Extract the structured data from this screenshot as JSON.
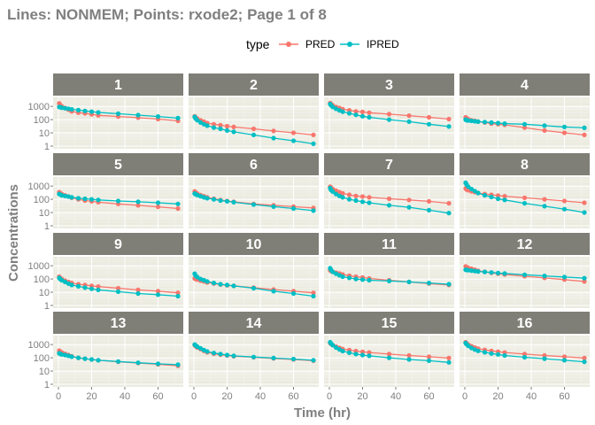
{
  "chart_data": {
    "type": "line",
    "title": "Lines: NONMEM; Points: rxode2; Page 1 of 8",
    "xlabel": "Time (hr)",
    "ylabel": "Concentrations",
    "y_scale": "log10",
    "xlim": [
      0,
      72
    ],
    "ylim": [
      1,
      3000
    ],
    "x_ticks": [
      0,
      20,
      40,
      60
    ],
    "y_ticks": [
      1,
      10,
      100,
      1000
    ],
    "y_tick_labels": [
      "1",
      "10",
      "100",
      "1000"
    ],
    "grid": true,
    "legend": {
      "title": "type",
      "position": "top",
      "entries": [
        {
          "name": "PRED",
          "color": "#F8766D"
        },
        {
          "name": "IPRED",
          "color": "#00BFC4"
        }
      ]
    },
    "colors": {
      "panel_bg": "#ebebe0",
      "strip_bg": "#7f7f77",
      "grid": "#ffffff",
      "PRED": "#F8766D",
      "IPRED": "#00BFC4",
      "text": "#7f7f7f"
    },
    "times": [
      0.5,
      1,
      2,
      4,
      6,
      8,
      12,
      16,
      20,
      24,
      36,
      48,
      60,
      72
    ],
    "panels": [
      {
        "id": "1",
        "pred": [
          1700,
          1300,
          1000,
          750,
          560,
          420,
          330,
          300,
          250,
          210
        ],
        "pred_end": 80,
        "ipred": [
          900,
          850,
          800,
          720,
          660,
          600,
          520,
          450,
          400,
          350
        ],
        "ipred_end": 130,
        "pred_t": [
          0.5,
          1,
          2,
          4,
          6,
          8,
          12,
          16,
          20,
          24,
          36,
          48,
          60,
          72
        ],
        "pred_vals": [
          1700,
          1300,
          1000,
          750,
          560,
          420,
          330,
          300,
          250,
          210,
          170,
          140,
          110,
          80
        ],
        "ipred_vals": [
          900,
          850,
          800,
          720,
          660,
          600,
          520,
          450,
          400,
          350,
          280,
          220,
          170,
          130
        ]
      },
      {
        "id": "2",
        "pred_vals": [
          180,
          150,
          120,
          90,
          70,
          55,
          45,
          38,
          32,
          28,
          20,
          14,
          10,
          7
        ],
        "ipred_vals": [
          160,
          120,
          90,
          60,
          45,
          35,
          25,
          20,
          15,
          12,
          7,
          4,
          2.5,
          1.5
        ]
      },
      {
        "id": "3",
        "pred_vals": [
          1800,
          1500,
          1200,
          900,
          750,
          620,
          500,
          420,
          380,
          330,
          260,
          200,
          150,
          110
        ],
        "ipred_vals": [
          1500,
          1200,
          900,
          650,
          500,
          400,
          300,
          230,
          180,
          150,
          100,
          70,
          45,
          30
        ]
      },
      {
        "id": "4",
        "pred_vals": [
          150,
          130,
          110,
          90,
          80,
          70,
          60,
          50,
          45,
          40,
          25,
          15,
          10,
          7
        ],
        "ipred_vals": [
          100,
          90,
          85,
          80,
          75,
          70,
          65,
          60,
          55,
          50,
          45,
          35,
          28,
          24
        ]
      },
      {
        "id": "5",
        "pred_vals": [
          350,
          300,
          250,
          200,
          160,
          130,
          100,
          80,
          70,
          60,
          45,
          35,
          27,
          20
        ],
        "ipred_vals": [
          250,
          230,
          200,
          180,
          160,
          140,
          120,
          110,
          100,
          90,
          75,
          65,
          55,
          45
        ]
      },
      {
        "id": "6",
        "pred_vals": [
          400,
          330,
          270,
          210,
          170,
          140,
          110,
          90,
          75,
          65,
          45,
          35,
          28,
          22
        ],
        "ipred_vals": [
          270,
          240,
          210,
          170,
          140,
          120,
          100,
          80,
          70,
          60,
          40,
          28,
          20,
          14
        ]
      },
      {
        "id": "7",
        "pred_vals": [
          900,
          750,
          600,
          450,
          350,
          280,
          220,
          180,
          160,
          140,
          110,
          90,
          70,
          50
        ],
        "ipred_vals": [
          700,
          500,
          380,
          250,
          180,
          140,
          100,
          80,
          65,
          55,
          35,
          25,
          15,
          9
        ]
      },
      {
        "id": "8",
        "pred_vals": [
          650,
          550,
          480,
          400,
          350,
          300,
          250,
          220,
          190,
          170,
          130,
          100,
          75,
          55
        ],
        "ipred_vals": [
          1800,
          1300,
          900,
          600,
          420,
          300,
          200,
          150,
          110,
          90,
          50,
          30,
          18,
          10
        ]
      },
      {
        "id": "9",
        "pred_vals": [
          150,
          120,
          100,
          75,
          60,
          50,
          40,
          35,
          30,
          27,
          20,
          15,
          12,
          9
        ],
        "ipred_vals": [
          120,
          100,
          80,
          60,
          45,
          35,
          28,
          22,
          18,
          15,
          11,
          8,
          6.5,
          5
        ]
      },
      {
        "id": "10",
        "pred_vals": [
          110,
          100,
          90,
          75,
          65,
          55,
          45,
          38,
          33,
          30,
          22,
          16,
          12,
          9
        ],
        "ipred_vals": [
          250,
          180,
          140,
          100,
          80,
          65,
          50,
          40,
          35,
          30,
          20,
          12,
          8,
          5
        ]
      },
      {
        "id": "11",
        "pred_vals": [
          450,
          400,
          350,
          300,
          260,
          220,
          180,
          150,
          130,
          110,
          80,
          60,
          45,
          35
        ],
        "ipred_vals": [
          650,
          480,
          350,
          250,
          190,
          150,
          120,
          100,
          90,
          80,
          70,
          60,
          50,
          40
        ]
      },
      {
        "id": "12",
        "pred_vals": [
          900,
          800,
          700,
          600,
          500,
          420,
          350,
          290,
          250,
          220,
          160,
          120,
          90,
          65
        ],
        "ipred_vals": [
          500,
          480,
          460,
          430,
          400,
          370,
          340,
          310,
          280,
          260,
          210,
          170,
          140,
          115
        ]
      },
      {
        "id": "13",
        "pred_vals": [
          350,
          300,
          250,
          200,
          160,
          130,
          100,
          85,
          75,
          65,
          50,
          40,
          32,
          25
        ],
        "ipred_vals": [
          220,
          200,
          180,
          160,
          140,
          120,
          100,
          85,
          75,
          65,
          52,
          42,
          35,
          30
        ]
      },
      {
        "id": "14",
        "pred_vals": [
          900,
          750,
          600,
          450,
          330,
          260,
          200,
          170,
          150,
          130,
          110,
          90,
          75,
          60
        ],
        "ipred_vals": [
          1000,
          850,
          700,
          520,
          380,
          300,
          230,
          190,
          160,
          140,
          115,
          95,
          80,
          65
        ]
      },
      {
        "id": "15",
        "pred_vals": [
          1300,
          1100,
          900,
          700,
          560,
          460,
          380,
          320,
          280,
          250,
          190,
          150,
          120,
          95
        ],
        "ipred_vals": [
          1500,
          1200,
          900,
          600,
          430,
          320,
          240,
          190,
          160,
          140,
          100,
          75,
          60,
          45
        ]
      },
      {
        "id": "16",
        "pred_vals": [
          1500,
          1250,
          1000,
          750,
          600,
          490,
          400,
          330,
          290,
          250,
          190,
          150,
          120,
          95
        ],
        "ipred_vals": [
          1300,
          1050,
          800,
          550,
          420,
          330,
          260,
          210,
          180,
          150,
          110,
          85,
          65,
          50
        ]
      }
    ]
  }
}
